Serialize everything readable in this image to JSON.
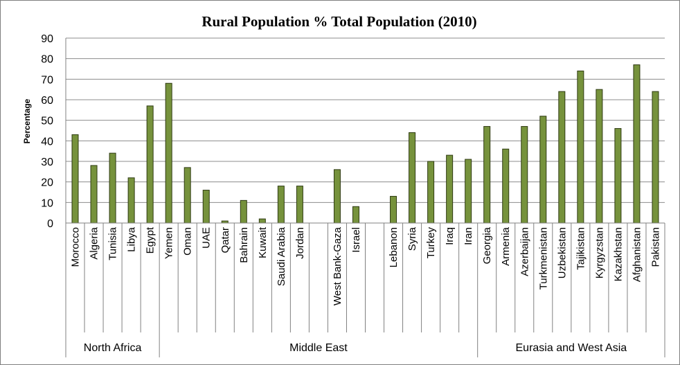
{
  "chart_data": {
    "type": "bar",
    "title": "Rural Population % Total Population (2010)",
    "ylabel": "Percentage",
    "ylim": [
      0,
      90
    ],
    "yticks": [
      "0",
      "10",
      "20",
      "30",
      "40",
      "50",
      "60",
      "70",
      "80",
      "90"
    ],
    "grid": true,
    "categories": [
      "Morocco",
      "Algeria",
      "Tunisia",
      "Libya",
      "Egypt",
      "Yemen",
      "Oman",
      "UAE",
      "Qatar",
      "Bahrain",
      "Kuwait",
      "Saudi Arabia",
      "Jordan",
      "",
      "West Bank-Gaza",
      "Israel",
      "",
      "Lebanon",
      "Syria",
      "Turkey",
      "Iraq",
      "Iran",
      "Georgia",
      "Armenia",
      "Azerbaijan",
      "Turkmenistan",
      "Uzbekistan",
      "Tajikistan",
      "Kyrgyzstan",
      "Kazakhstan",
      "Afghanistan",
      "Pakistan"
    ],
    "values": [
      43,
      28,
      34,
      22,
      57,
      68,
      27,
      16,
      1,
      11,
      2,
      18,
      18,
      null,
      26,
      8,
      null,
      13,
      44,
      30,
      33,
      31,
      47,
      36,
      47,
      52,
      64,
      74,
      65,
      46,
      77,
      64
    ],
    "groups": [
      {
        "name": "North Africa",
        "start": 0,
        "end": 4
      },
      {
        "name": "Middle East",
        "start": 5,
        "end": 21
      },
      {
        "name": "Eurasia and West Asia",
        "start": 22,
        "end": 31
      }
    ],
    "colors": {
      "bar_fill": "#76923c",
      "bar_stroke": "#2e3a12",
      "grid": "#8c8c8c",
      "axis": "#808080"
    }
  }
}
